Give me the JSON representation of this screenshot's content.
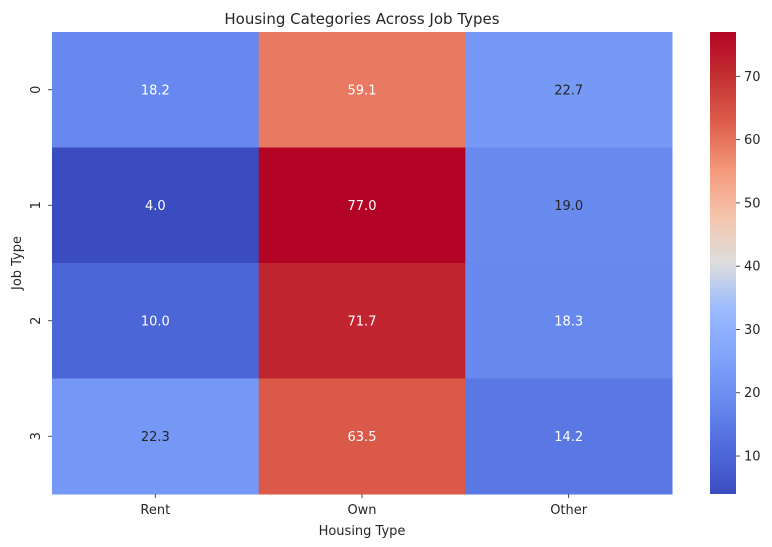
{
  "chart_data": {
    "type": "heatmap",
    "title": "Housing Categories Across Job Types",
    "xlabel": "Housing Type",
    "ylabel": "Job Type",
    "x_categories": [
      "Rent",
      "Own",
      "Other"
    ],
    "y_categories": [
      "0",
      "1",
      "2",
      "3"
    ],
    "values": [
      [
        18.2,
        59.1,
        22.7
      ],
      [
        4.0,
        77.0,
        19.0
      ],
      [
        10.0,
        71.7,
        18.3
      ],
      [
        22.3,
        63.5,
        14.2
      ]
    ],
    "value_labels": [
      [
        "18.2",
        "59.1",
        "22.7"
      ],
      [
        "4.0",
        "77.0",
        "19.0"
      ],
      [
        "10.0",
        "71.7",
        "18.3"
      ],
      [
        "22.3",
        "63.5",
        "14.2"
      ]
    ],
    "colormap": "coolwarm",
    "color_range": [
      4.0,
      77.0
    ],
    "colorbar_ticks": [
      "10",
      "20",
      "30",
      "40",
      "50",
      "60",
      "70"
    ],
    "colorbar_tick_values": [
      10,
      20,
      30,
      40,
      50,
      60,
      70
    ],
    "grid": false,
    "legend": "colorbar-right"
  }
}
